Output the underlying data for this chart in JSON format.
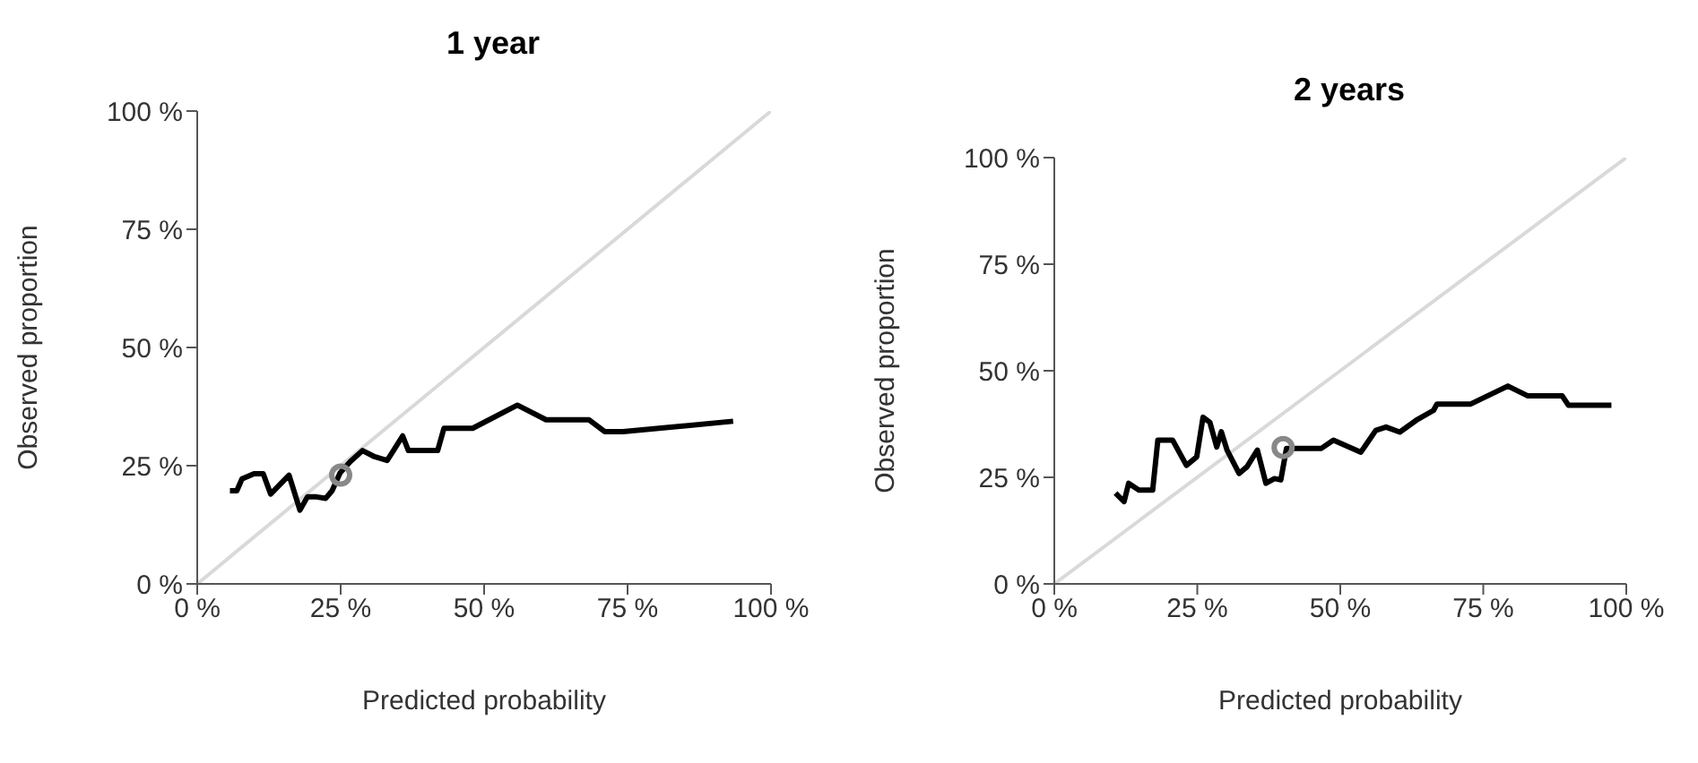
{
  "chart_data": [
    {
      "type": "line",
      "title": "1 year",
      "xlabel": "Predicted probability",
      "ylabel": "Observed proportion",
      "xlim": [
        0,
        100
      ],
      "ylim": [
        0,
        100
      ],
      "xticks": [
        {
          "value": 0,
          "label": "0 %"
        },
        {
          "value": 25,
          "label": "25 %"
        },
        {
          "value": 50,
          "label": "50 %"
        },
        {
          "value": 75,
          "label": "75 %"
        },
        {
          "value": 100,
          "label": "100 %"
        }
      ],
      "yticks": [
        {
          "value": 0,
          "label": "0 %"
        },
        {
          "value": 25,
          "label": "25 %"
        },
        {
          "value": 50,
          "label": "50 %"
        },
        {
          "value": 75,
          "label": "75 %"
        },
        {
          "value": 100,
          "label": "100 %"
        }
      ],
      "grid": false,
      "legend": false,
      "series": [
        {
          "color": "#d9d9d9",
          "x": [
            0,
            100
          ],
          "values": [
            0,
            100
          ]
        },
        {
          "color": "#000000",
          "x": [
            5.7,
            6.9,
            7.8,
            9.9,
            11.5,
            12.8,
            14.4,
            16,
            17.9,
            19.2,
            20.8,
            22.4,
            23.5,
            24.9,
            26.7,
            28.8,
            30.9,
            33.1,
            34.2,
            35.8,
            36.8,
            41.9,
            43,
            48,
            55.8,
            60.8,
            68.3,
            71,
            74.2,
            93.4
          ],
          "values": [
            19.7,
            19.7,
            22.2,
            23.3,
            23.3,
            19,
            21,
            23,
            15.6,
            18.4,
            18.4,
            18.1,
            19.7,
            23.5,
            25.9,
            28.2,
            26.9,
            26.1,
            28.2,
            31.3,
            28.2,
            28.2,
            32.9,
            32.9,
            37.8,
            34.7,
            34.7,
            32.2,
            32.2,
            34.4
          ]
        },
        {
          "type": "scatter",
          "color": "#888888",
          "marker": "circle",
          "x": [
            25
          ],
          "values": [
            23
          ]
        }
      ]
    },
    {
      "type": "line",
      "title": "2 years",
      "xlabel": "Predicted probability",
      "ylabel": "Observed proportion",
      "xlim": [
        0,
        100
      ],
      "ylim": [
        0,
        100
      ],
      "xticks": [
        {
          "value": 0,
          "label": "0 %"
        },
        {
          "value": 25,
          "label": "25 %"
        },
        {
          "value": 50,
          "label": "50 %"
        },
        {
          "value": 75,
          "label": "75 %"
        },
        {
          "value": 100,
          "label": "100 %"
        }
      ],
      "yticks": [
        {
          "value": 0,
          "label": "0 %"
        },
        {
          "value": 25,
          "label": "25 %"
        },
        {
          "value": 50,
          "label": "50 %"
        },
        {
          "value": 75,
          "label": "75 %"
        },
        {
          "value": 100,
          "label": "100 %"
        }
      ],
      "grid": false,
      "legend": false,
      "series": [
        {
          "color": "#d9d9d9",
          "x": [
            0,
            100
          ],
          "values": [
            0,
            100
          ]
        },
        {
          "color": "#000000",
          "x": [
            10.7,
            12.2,
            13,
            14.8,
            17.2,
            18.1,
            20.7,
            23.1,
            24.9,
            26,
            27.2,
            28.4,
            29.2,
            30.2,
            32.3,
            33.7,
            35.5,
            37,
            38.5,
            39.6,
            40.6,
            46.7,
            48.8,
            53.6,
            56.2,
            58,
            60.4,
            63.3,
            66.3,
            66.9,
            72.8,
            79.3,
            82.8,
            88.8,
            89.9,
            97.4
          ],
          "values": [
            21.3,
            19.3,
            23.6,
            22,
            22,
            33.7,
            33.7,
            27.8,
            29.8,
            39.1,
            37.9,
            32.1,
            35.7,
            31.4,
            25.9,
            27.5,
            31.4,
            23.6,
            24.7,
            24.4,
            31.8,
            31.8,
            33.7,
            30.9,
            36,
            36.8,
            35.6,
            38.4,
            40.7,
            42.2,
            42.2,
            46.4,
            44.1,
            44.1,
            41.9,
            41.9
          ]
        },
        {
          "type": "scatter",
          "color": "#888888",
          "marker": "circle",
          "x": [
            40
          ],
          "values": [
            32
          ]
        }
      ]
    }
  ]
}
